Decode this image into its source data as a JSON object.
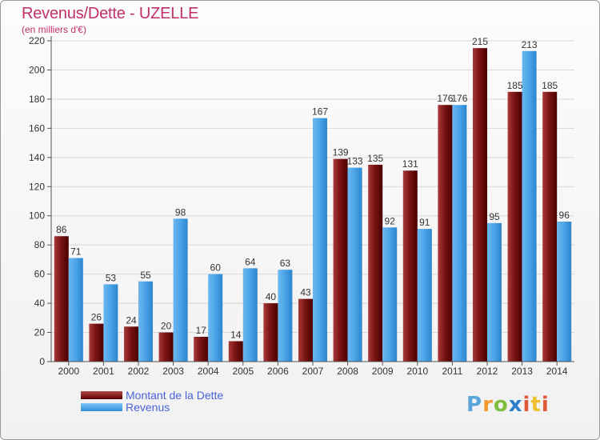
{
  "title": "Revenus/Dette - UZELLE",
  "subtitle": "(en milliers d'€)",
  "logo_text": "Proxiti",
  "colors": {
    "title": "#c0306a",
    "debt_light": "#b54a4a",
    "debt_dark": "#5a0000",
    "revenue_light": "#7cc4f7",
    "revenue_dark": "#2f8fd9",
    "legend_text": "#4a63d6"
  },
  "chart_data": {
    "type": "bar",
    "categories": [
      "2000",
      "2001",
      "2002",
      "2003",
      "2004",
      "2005",
      "2006",
      "2007",
      "2008",
      "2009",
      "2010",
      "2011",
      "2012",
      "2013",
      "2014"
    ],
    "series": [
      {
        "name": "Montant de la Dette",
        "values": [
          86,
          26,
          24,
          20,
          17,
          14,
          40,
          43,
          139,
          135,
          131,
          176,
          215,
          185,
          185
        ]
      },
      {
        "name": "Revenus",
        "values": [
          71,
          53,
          55,
          98,
          60,
          64,
          63,
          167,
          133,
          92,
          91,
          176,
          95,
          213,
          96
        ]
      }
    ],
    "ylim": [
      0,
      220
    ],
    "yticks": [
      0,
      20,
      40,
      60,
      80,
      100,
      120,
      140,
      160,
      180,
      200,
      220
    ],
    "grid": true,
    "legend_position": "bottom-left"
  }
}
